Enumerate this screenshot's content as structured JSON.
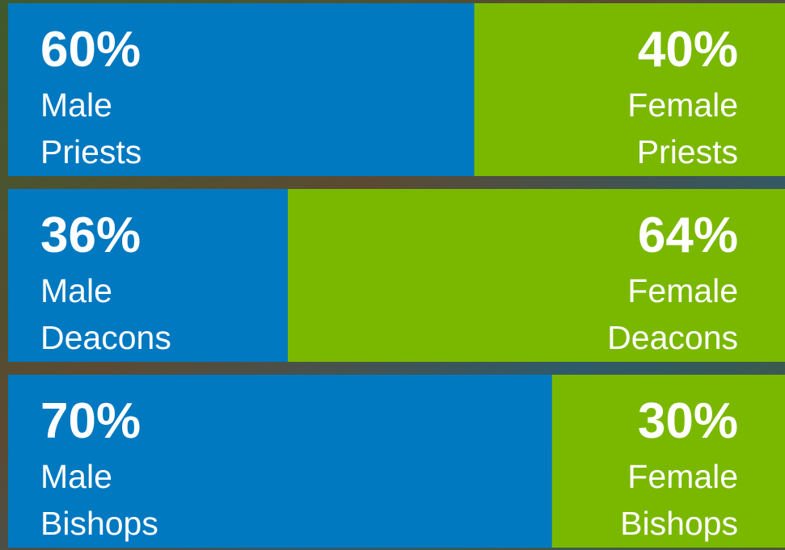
{
  "chart_data": {
    "type": "stacked_bar_horizontal",
    "categories": [
      "Priests",
      "Deacons",
      "Bishops"
    ],
    "series": [
      {
        "name": "Male",
        "color": "#0079c1",
        "values": [
          60,
          36,
          70
        ],
        "value_labels": [
          "60%",
          "36%",
          "70%"
        ]
      },
      {
        "name": "Female",
        "color": "#7ab800",
        "values": [
          40,
          64,
          30
        ],
        "value_labels": [
          "40%",
          "64%",
          "30%"
        ]
      }
    ],
    "xlim": [
      0,
      100
    ]
  }
}
